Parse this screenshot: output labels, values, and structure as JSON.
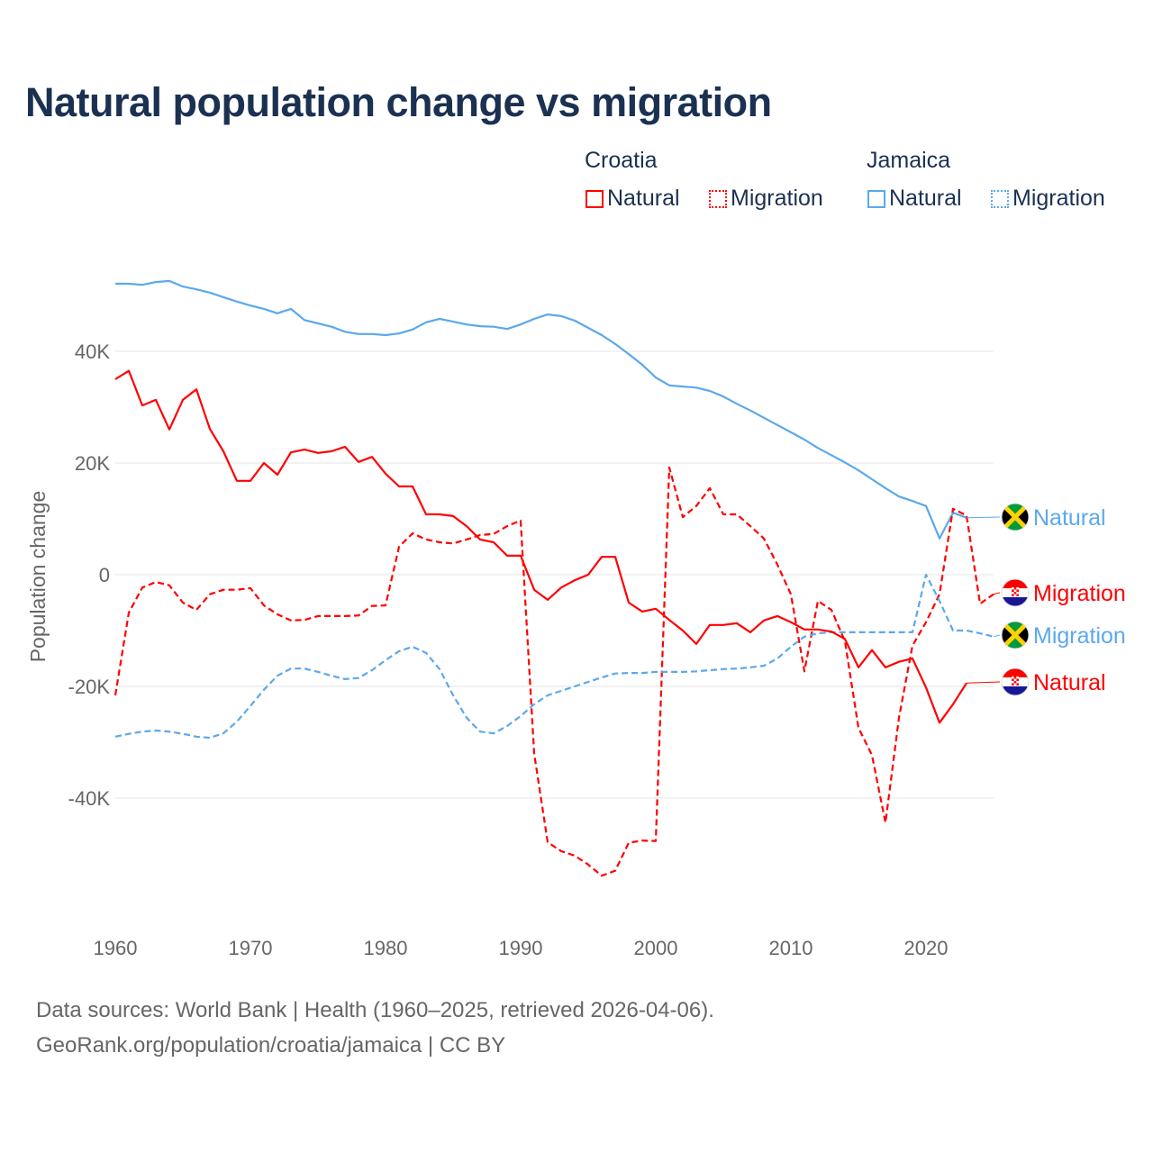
{
  "title": "Natural population change vs migration",
  "legend": {
    "groups": [
      {
        "name": "Croatia",
        "color": "#ff0000",
        "items": [
          {
            "label": "Natural",
            "style": "solid"
          },
          {
            "label": "Migration",
            "style": "dotted"
          }
        ]
      },
      {
        "name": "Jamaica",
        "color": "#5ba8ec",
        "items": [
          {
            "label": "Natural",
            "style": "solid"
          },
          {
            "label": "Migration",
            "style": "dotted"
          }
        ]
      }
    ]
  },
  "footer": {
    "line1": "Data sources: World Bank | Health (1960–2025, retrieved 2026-04-06).",
    "line2": "GeoRank.org/population/croatia/jamaica | CC BY"
  },
  "chart_data": {
    "type": "line",
    "title": "Natural population change vs migration",
    "xlabel": "",
    "ylabel": "Population change",
    "xlim": [
      1960,
      2025
    ],
    "ylim": [
      -58000,
      55000
    ],
    "x_ticks": [
      1960,
      1970,
      1980,
      1990,
      2000,
      2010,
      2020
    ],
    "x_tick_labels": [
      "1960",
      "1970",
      "1980",
      "1990",
      "2000",
      "2010",
      "2020"
    ],
    "y_ticks": [
      40000,
      20000,
      0,
      -20000,
      -40000
    ],
    "y_tick_labels": [
      "40K",
      "20K",
      "0",
      "-20K",
      "-40K"
    ],
    "grid": "horizontal",
    "legend_position": "top-right",
    "series": [
      {
        "name": "Jamaica Natural",
        "country": "Jamaica",
        "end_label": "Natural",
        "color": "#5ba8ec",
        "dash": false,
        "start": 1960,
        "values": [
          52100,
          52100,
          51900,
          52400,
          52600,
          51600,
          51100,
          50500,
          49700,
          48900,
          48200,
          47600,
          46800,
          47600,
          45600,
          45000,
          44400,
          43500,
          43100,
          43100,
          42900,
          43200,
          43900,
          45200,
          45800,
          45300,
          44800,
          44500,
          44400,
          44000,
          44800,
          45800,
          46600,
          46300,
          45500,
          44200,
          42900,
          41300,
          39500,
          37600,
          35300,
          33900,
          33700,
          33500,
          32900,
          31900,
          30600,
          29400,
          28100,
          26800,
          25500,
          24200,
          22700,
          21400,
          20100,
          18700,
          17100,
          15500,
          14000,
          13200,
          12300,
          6500,
          11100,
          10200
        ]
      },
      {
        "name": "Croatia Migration",
        "country": "Croatia",
        "end_label": "Migration",
        "color": "#ff0000",
        "dash": true,
        "start": 1960,
        "values": [
          -21600,
          -6800,
          -2300,
          -1300,
          -1900,
          -5000,
          -6300,
          -3500,
          -2700,
          -2700,
          -2400,
          -5500,
          -7100,
          -8200,
          -8100,
          -7400,
          -7400,
          -7400,
          -7300,
          -5600,
          -5500,
          5000,
          7400,
          6300,
          5800,
          5600,
          6300,
          7100,
          7300,
          8700,
          9700,
          -32000,
          -47900,
          -49500,
          -50300,
          -51900,
          -53900,
          -53000,
          -48000,
          -47600,
          -47700,
          19200,
          10300,
          12300,
          15500,
          10800,
          10800,
          8700,
          6500,
          1800,
          -3500,
          -17300,
          -4700,
          -6300,
          -11900,
          -27400,
          -32300,
          -44400,
          -25600,
          -12700,
          -8500,
          -3500,
          11800,
          10600,
          -5200,
          -3500
        ]
      },
      {
        "name": "Jamaica Migration",
        "country": "Jamaica",
        "end_label": "Migration",
        "color": "#5ba8ec",
        "dash": true,
        "start": 1960,
        "values": [
          -29000,
          -28500,
          -28100,
          -27900,
          -28100,
          -28500,
          -29000,
          -29200,
          -28400,
          -26300,
          -23500,
          -20600,
          -18100,
          -16800,
          -16800,
          -17400,
          -18100,
          -18700,
          -18500,
          -17100,
          -15300,
          -13700,
          -12900,
          -14000,
          -16900,
          -21600,
          -25600,
          -28100,
          -28400,
          -27100,
          -25300,
          -23200,
          -21600,
          -20800,
          -20000,
          -19200,
          -18400,
          -17700,
          -17600,
          -17600,
          -17400,
          -17400,
          -17400,
          -17300,
          -17100,
          -16900,
          -16800,
          -16600,
          -16300,
          -15000,
          -12900,
          -11100,
          -10500,
          -10300,
          -10300,
          -10300,
          -10300,
          -10300,
          -10300,
          -10300,
          0,
          -4700,
          -10000,
          -10000,
          -10500,
          -11100
        ]
      },
      {
        "name": "Croatia Natural",
        "country": "Croatia",
        "end_label": "Natural",
        "color": "#ff0000",
        "dash": false,
        "start": 1960,
        "values": [
          35000,
          36500,
          30300,
          31300,
          26000,
          31300,
          33200,
          26100,
          22100,
          16800,
          16800,
          20000,
          17900,
          21900,
          22400,
          21800,
          22100,
          22900,
          20200,
          21100,
          18100,
          15800,
          15800,
          10800,
          10800,
          10500,
          8700,
          6300,
          5800,
          3400,
          3400,
          -2700,
          -4500,
          -2300,
          -1000,
          0,
          3200,
          3200,
          -5000,
          -6600,
          -6100,
          -8100,
          -10000,
          -12400,
          -9000,
          -9000,
          -8700,
          -10300,
          -8200,
          -7400,
          -8500,
          -9800,
          -9800,
          -10200,
          -11500,
          -16600,
          -13500,
          -16600,
          -15600,
          -15000,
          -20200,
          -26500,
          -23200,
          -19400
        ]
      }
    ]
  }
}
